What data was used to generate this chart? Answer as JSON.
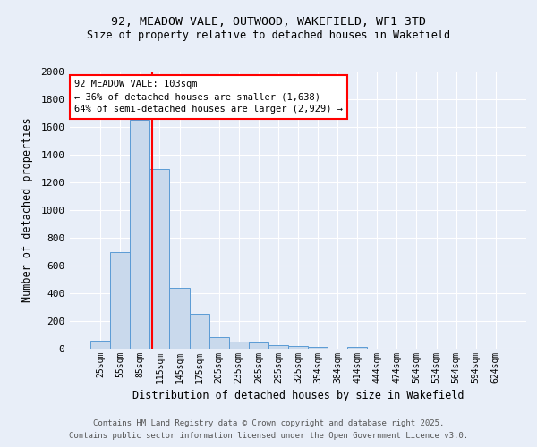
{
  "title1": "92, MEADOW VALE, OUTWOOD, WAKEFIELD, WF1 3TD",
  "title2": "Size of property relative to detached houses in Wakefield",
  "xlabel": "Distribution of detached houses by size in Wakefield",
  "ylabel": "Number of detached properties",
  "categories": [
    "25sqm",
    "55sqm",
    "85sqm",
    "115sqm",
    "145sqm",
    "175sqm",
    "205sqm",
    "235sqm",
    "265sqm",
    "295sqm",
    "325sqm",
    "354sqm",
    "384sqm",
    "414sqm",
    "444sqm",
    "474sqm",
    "504sqm",
    "534sqm",
    "564sqm",
    "594sqm",
    "624sqm"
  ],
  "values": [
    55,
    700,
    1650,
    1300,
    440,
    250,
    85,
    50,
    45,
    25,
    20,
    10,
    0,
    15,
    0,
    0,
    0,
    0,
    0,
    0,
    0
  ],
  "bar_color": "#c9d9ec",
  "bar_edgecolor": "#5b9bd5",
  "ylim": [
    0,
    2000
  ],
  "yticks": [
    0,
    200,
    400,
    600,
    800,
    1000,
    1200,
    1400,
    1600,
    1800,
    2000
  ],
  "vline_x": 2.6,
  "vline_color": "red",
  "annotation_text": "92 MEADOW VALE: 103sqm\n← 36% of detached houses are smaller (1,638)\n64% of semi-detached houses are larger (2,929) →",
  "footer1": "Contains HM Land Registry data © Crown copyright and database right 2025.",
  "footer2": "Contains public sector information licensed under the Open Government Licence v3.0.",
  "background_color": "#e8eef8",
  "grid_color": "#ffffff"
}
